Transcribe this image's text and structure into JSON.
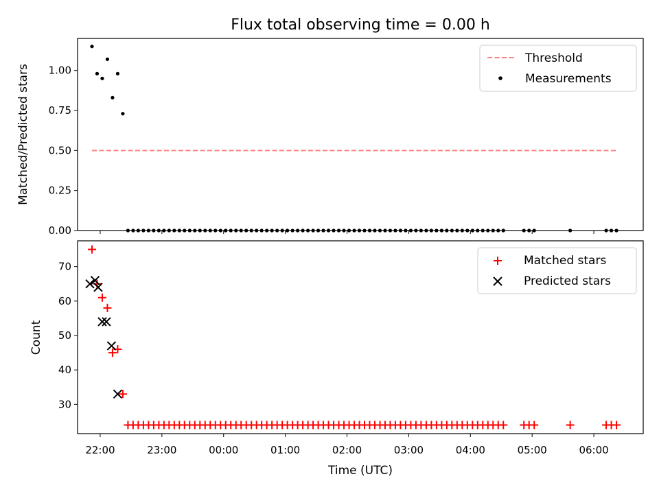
{
  "chart_data": [
    {
      "type": "scatter",
      "title": "Flux total observing time = 0.00 h",
      "xlabel": "",
      "ylabel": "Matched/Predicted stars",
      "xlim": [
        "21:38",
        "06:48"
      ],
      "ylim": [
        0.0,
        1.2
      ],
      "yticks": [
        0.0,
        0.25,
        0.5,
        0.75,
        1.0
      ],
      "ytick_labels": [
        "0.00",
        "0.25",
        "0.50",
        "0.75",
        "1.00"
      ],
      "legend_position": "top-right",
      "series": [
        {
          "name": "Threshold",
          "kind": "dashed-line",
          "color": "#ff7f7f",
          "x": [
            "21:52",
            "06:22"
          ],
          "y": [
            0.5,
            0.5
          ]
        },
        {
          "name": "Measurements",
          "kind": "points",
          "color": "#000000",
          "x": [
            "21:52",
            "21:57",
            "22:02",
            "22:07",
            "22:12",
            "22:17",
            "22:22",
            "22:27",
            "22:32",
            "22:37",
            "22:42",
            "22:47",
            "22:52",
            "22:57",
            "23:02",
            "23:07",
            "23:12",
            "23:17",
            "23:22",
            "23:27",
            "23:32",
            "23:37",
            "23:42",
            "23:47",
            "23:52",
            "23:57",
            "00:02",
            "00:07",
            "00:12",
            "00:17",
            "00:22",
            "00:27",
            "00:32",
            "00:37",
            "00:42",
            "00:47",
            "00:52",
            "00:57",
            "01:02",
            "01:07",
            "01:12",
            "01:17",
            "01:22",
            "01:27",
            "01:32",
            "01:37",
            "01:42",
            "01:47",
            "01:52",
            "01:57",
            "02:02",
            "02:07",
            "02:12",
            "02:17",
            "02:22",
            "02:27",
            "02:32",
            "02:37",
            "02:42",
            "02:47",
            "02:52",
            "02:57",
            "03:02",
            "03:07",
            "03:12",
            "03:17",
            "03:22",
            "03:27",
            "03:32",
            "03:37",
            "03:42",
            "03:47",
            "03:52",
            "03:57",
            "04:02",
            "04:07",
            "04:12",
            "04:17",
            "04:22",
            "04:27",
            "04:32",
            "04:52",
            "04:57",
            "05:02",
            "05:37",
            "06:12",
            "06:17",
            "06:22"
          ],
          "y": [
            1.15,
            0.98,
            0.95,
            1.07,
            0.83,
            0.98,
            0.73,
            0,
            0,
            0,
            0,
            0,
            0,
            0,
            0,
            0,
            0,
            0,
            0,
            0,
            0,
            0,
            0,
            0,
            0,
            0,
            0,
            0,
            0,
            0,
            0,
            0,
            0,
            0,
            0,
            0,
            0,
            0,
            0,
            0,
            0,
            0,
            0,
            0,
            0,
            0,
            0,
            0,
            0,
            0,
            0,
            0,
            0,
            0,
            0,
            0,
            0,
            0,
            0,
            0,
            0,
            0,
            0,
            0,
            0,
            0,
            0,
            0,
            0,
            0,
            0,
            0,
            0,
            0,
            0,
            0,
            0,
            0,
            0,
            0,
            0,
            0,
            0,
            0,
            0,
            0,
            0,
            0
          ]
        }
      ]
    },
    {
      "type": "scatter",
      "title": "",
      "xlabel": "Time (UTC)",
      "ylabel": "Count",
      "xlim": [
        "21:38",
        "06:48"
      ],
      "ylim": [
        21.5,
        77.5
      ],
      "yticks": [
        30,
        40,
        50,
        60,
        70
      ],
      "ytick_labels": [
        "30",
        "40",
        "50",
        "60",
        "70"
      ],
      "xticks": [
        "22:00",
        "23:00",
        "00:00",
        "01:00",
        "02:00",
        "03:00",
        "04:00",
        "05:00",
        "06:00"
      ],
      "legend_position": "top-right",
      "series": [
        {
          "name": "Matched stars",
          "kind": "plus",
          "color": "#ff0000",
          "x": [
            "21:52",
            "21:57",
            "22:02",
            "22:07",
            "22:12",
            "22:17",
            "22:22",
            "22:27",
            "22:32",
            "22:37",
            "22:42",
            "22:47",
            "22:52",
            "22:57",
            "23:02",
            "23:07",
            "23:12",
            "23:17",
            "23:22",
            "23:27",
            "23:32",
            "23:37",
            "23:42",
            "23:47",
            "23:52",
            "23:57",
            "00:02",
            "00:07",
            "00:12",
            "00:17",
            "00:22",
            "00:27",
            "00:32",
            "00:37",
            "00:42",
            "00:47",
            "00:52",
            "00:57",
            "01:02",
            "01:07",
            "01:12",
            "01:17",
            "01:22",
            "01:27",
            "01:32",
            "01:37",
            "01:42",
            "01:47",
            "01:52",
            "01:57",
            "02:02",
            "02:07",
            "02:12",
            "02:17",
            "02:22",
            "02:27",
            "02:32",
            "02:37",
            "02:42",
            "02:47",
            "02:52",
            "02:57",
            "03:02",
            "03:07",
            "03:12",
            "03:17",
            "03:22",
            "03:27",
            "03:32",
            "03:37",
            "03:42",
            "03:47",
            "03:52",
            "03:57",
            "04:02",
            "04:07",
            "04:12",
            "04:17",
            "04:22",
            "04:27",
            "04:32",
            "04:52",
            "04:57",
            "05:02",
            "05:37",
            "06:12",
            "06:17",
            "06:22"
          ],
          "y": [
            75,
            65,
            61,
            58,
            45,
            46,
            33,
            24,
            24,
            24,
            24,
            24,
            24,
            24,
            24,
            24,
            24,
            24,
            24,
            24,
            24,
            24,
            24,
            24,
            24,
            24,
            24,
            24,
            24,
            24,
            24,
            24,
            24,
            24,
            24,
            24,
            24,
            24,
            24,
            24,
            24,
            24,
            24,
            24,
            24,
            24,
            24,
            24,
            24,
            24,
            24,
            24,
            24,
            24,
            24,
            24,
            24,
            24,
            24,
            24,
            24,
            24,
            24,
            24,
            24,
            24,
            24,
            24,
            24,
            24,
            24,
            24,
            24,
            24,
            24,
            24,
            24,
            24,
            24,
            24,
            24,
            24,
            24,
            24,
            24,
            24,
            24,
            24
          ]
        },
        {
          "name": "Predicted stars",
          "kind": "x",
          "color": "#000000",
          "x": [
            "21:50",
            "21:55",
            "21:58",
            "22:02",
            "22:06",
            "22:11",
            "22:17"
          ],
          "y": [
            65,
            66,
            64,
            54,
            54,
            47,
            33
          ]
        }
      ]
    }
  ]
}
